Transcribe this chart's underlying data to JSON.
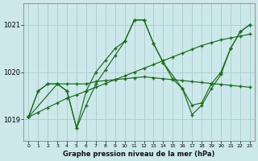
{
  "background_color": "#cce8ea",
  "grid_color": "#aacccc",
  "line_color": "#1a6b1a",
  "title": "Graphe pression niveau de la mer (hPa)",
  "xlim": [
    -0.5,
    23.5
  ],
  "ylim": [
    1018.55,
    1021.45
  ],
  "yticks": [
    1019,
    1020,
    1021
  ],
  "xticks": [
    0,
    1,
    2,
    3,
    4,
    5,
    6,
    7,
    8,
    9,
    10,
    11,
    12,
    13,
    14,
    15,
    16,
    17,
    18,
    19,
    20,
    21,
    22,
    23
  ],
  "series": [
    {
      "x": [
        0,
        1,
        2,
        3,
        4,
        5,
        6,
        7,
        8,
        9,
        10,
        11,
        12,
        13,
        14,
        15,
        16,
        17,
        18,
        19,
        20,
        21,
        22,
        23
      ],
      "y": [
        1019.05,
        1019.6,
        1019.75,
        1019.75,
        1019.6,
        1018.82,
        1019.6,
        1020.0,
        1020.25,
        1020.5,
        1020.65,
        1021.1,
        1021.1,
        1020.6,
        1020.2,
        1019.85,
        1019.65,
        1019.3,
        1019.35,
        1019.75,
        1020.0,
        1020.5,
        1020.85,
        1021.0
      ]
    },
    {
      "x": [
        0,
        1,
        2,
        3,
        4,
        5,
        6,
        7,
        8,
        9,
        10,
        11,
        12,
        13,
        14,
        15,
        16,
        17,
        18,
        19,
        20,
        21,
        22,
        23
      ],
      "y": [
        1019.05,
        1019.15,
        1019.25,
        1019.35,
        1019.45,
        1019.52,
        1019.6,
        1019.68,
        1019.76,
        1019.84,
        1019.92,
        1020.0,
        1020.08,
        1020.16,
        1020.24,
        1020.32,
        1020.4,
        1020.48,
        1020.56,
        1020.62,
        1020.68,
        1020.72,
        1020.76,
        1020.8
      ]
    },
    {
      "x": [
        0,
        1,
        2,
        3,
        4,
        5,
        6,
        7,
        8,
        9,
        10,
        11,
        12,
        13,
        14,
        15,
        16,
        17,
        18,
        19,
        20,
        21,
        22,
        23
      ],
      "y": [
        1019.05,
        1019.6,
        1019.75,
        1019.75,
        1019.75,
        1019.75,
        1019.75,
        1019.8,
        1019.82,
        1019.84,
        1019.86,
        1019.88,
        1019.9,
        1019.88,
        1019.86,
        1019.84,
        1019.82,
        1019.8,
        1019.78,
        1019.76,
        1019.74,
        1019.72,
        1019.7,
        1019.68
      ]
    },
    {
      "x": [
        0,
        3,
        4,
        5,
        6,
        7,
        8,
        9,
        10,
        11,
        12,
        13,
        14,
        16,
        17,
        18,
        19,
        20,
        21,
        22,
        23
      ],
      "y": [
        1019.05,
        1019.75,
        1019.6,
        1018.82,
        1019.3,
        1019.75,
        1020.05,
        1020.35,
        1020.65,
        1021.1,
        1021.1,
        1020.6,
        1020.2,
        1019.65,
        1019.1,
        1019.3,
        1019.65,
        1019.95,
        1020.5,
        1020.85,
        1021.0
      ]
    }
  ]
}
